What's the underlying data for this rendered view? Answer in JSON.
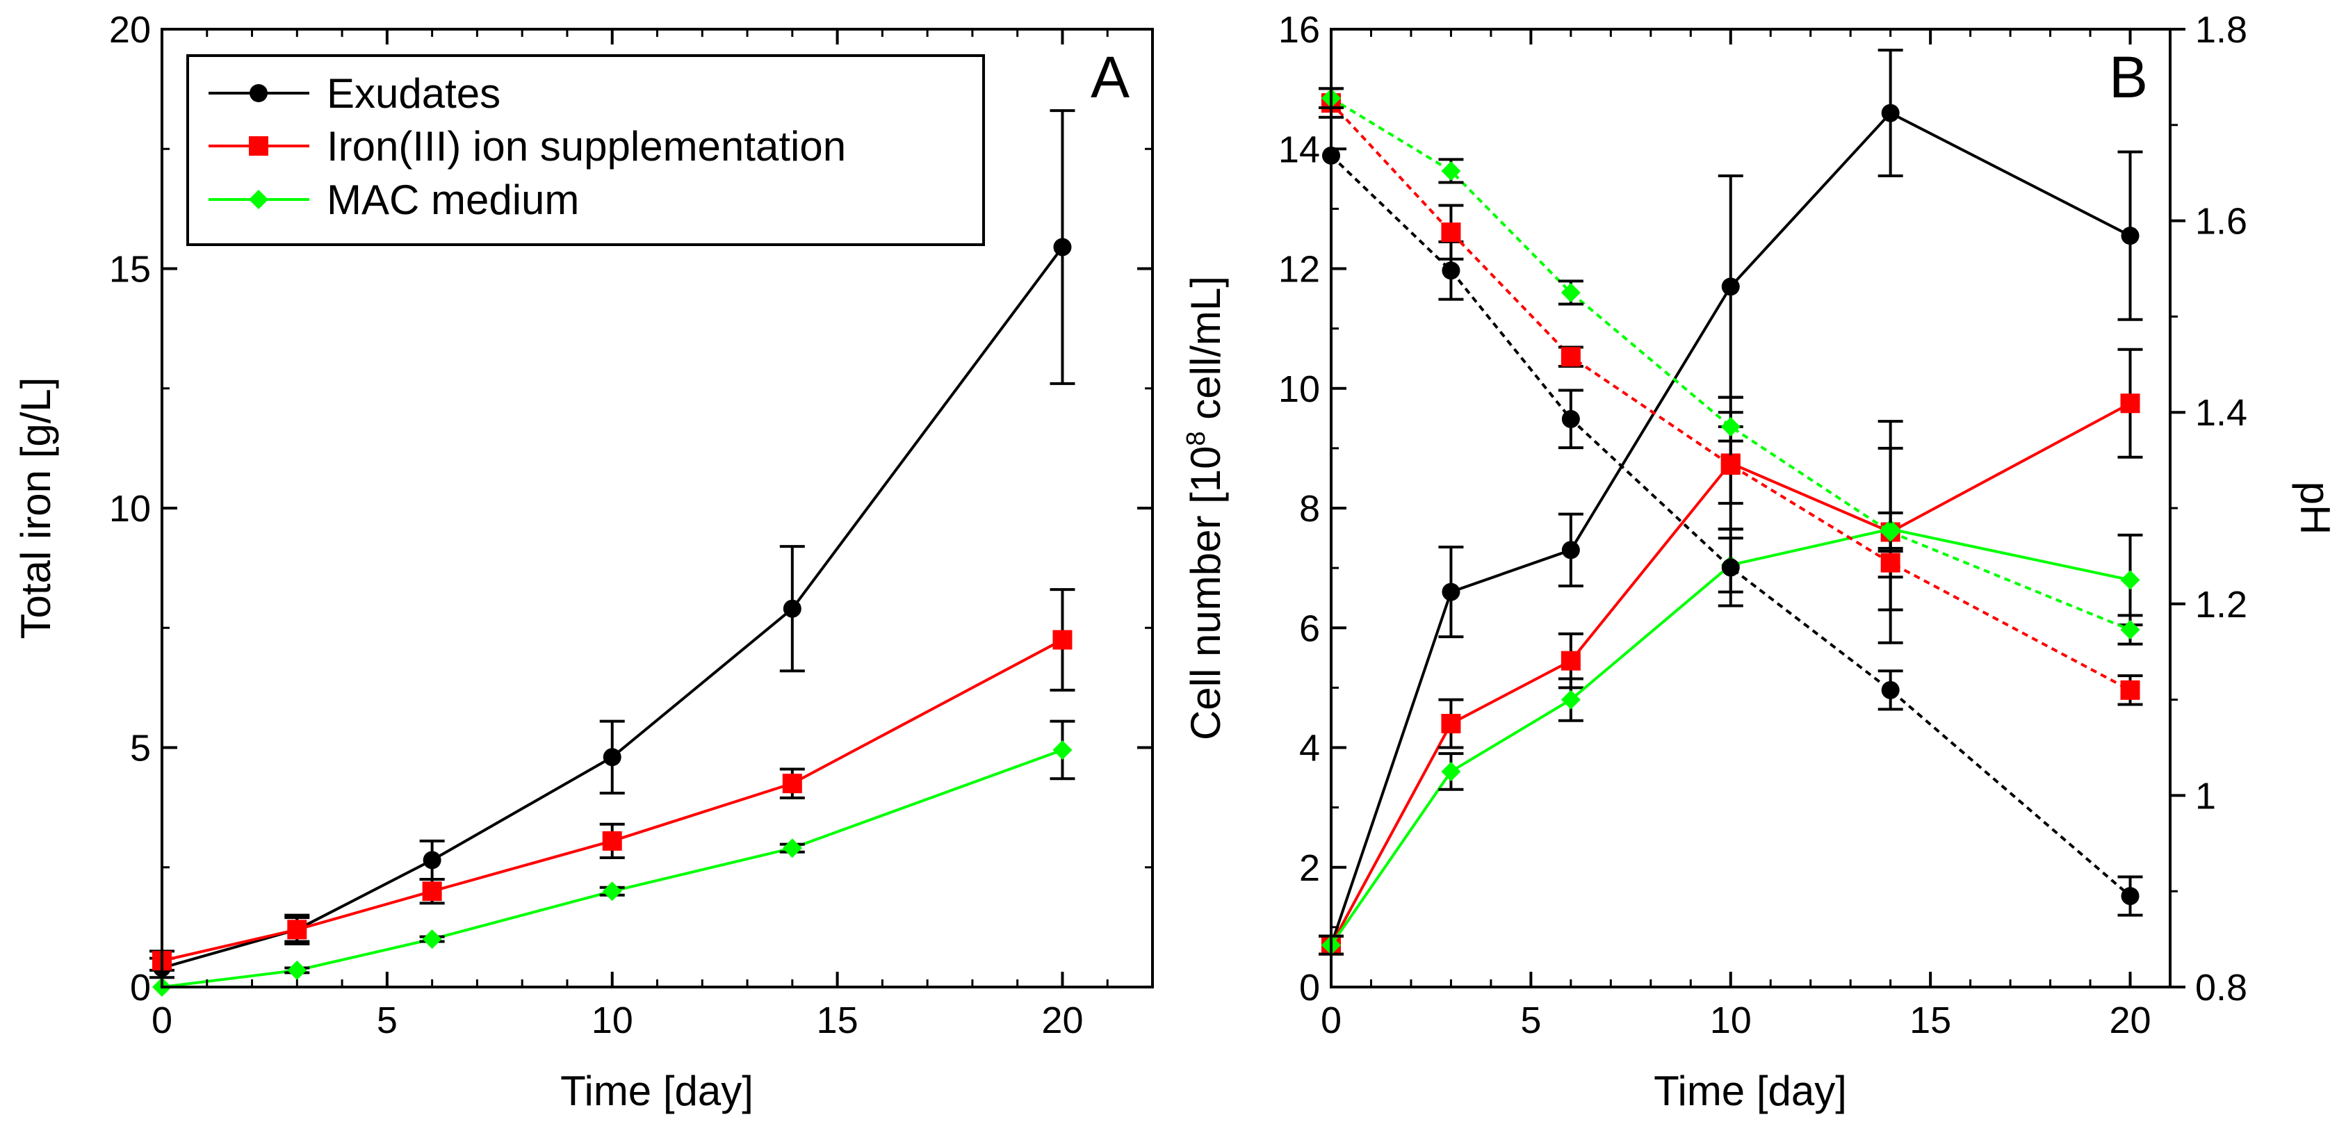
{
  "chart_data": [
    {
      "type": "line",
      "panel_label": "A",
      "xlabel": "Time [day]",
      "ylabel": "Total iron [g/L]",
      "xlim": [
        0,
        22
      ],
      "ylim": [
        0,
        20
      ],
      "x_ticks": [
        0,
        5,
        10,
        15,
        20
      ],
      "y_ticks": [
        0,
        5,
        10,
        15,
        20
      ],
      "grid": false,
      "legend_position": "top-left",
      "series": [
        {
          "name": "Exudates",
          "color": "#000000",
          "marker": "circle",
          "x": [
            0,
            3,
            6,
            10,
            14,
            20
          ],
          "values": [
            0.4,
            1.2,
            2.65,
            4.8,
            7.9,
            15.45
          ],
          "errors": [
            0.2,
            0.3,
            0.4,
            0.75,
            1.3,
            2.85
          ]
        },
        {
          "name": "Iron(III) ion supplementation",
          "color": "#ff0000",
          "marker": "square",
          "x": [
            0,
            3,
            6,
            10,
            14,
            20
          ],
          "values": [
            0.55,
            1.2,
            2.0,
            3.05,
            4.25,
            7.25
          ],
          "errors": [
            0.2,
            0.25,
            0.25,
            0.35,
            0.3,
            1.05
          ]
        },
        {
          "name": "MAC medium",
          "color": "#00ff00",
          "marker": "diamond",
          "x": [
            0,
            3,
            6,
            10,
            14,
            20
          ],
          "values": [
            0.0,
            0.35,
            1.0,
            2.0,
            2.9,
            4.95
          ],
          "errors": [
            0,
            0.05,
            0.05,
            0.08,
            0.08,
            0.6
          ]
        }
      ]
    },
    {
      "type": "line",
      "panel_label": "B",
      "xlabel": "Time [day]",
      "ylabel_prefix": "Cell number [10",
      "ylabel_sup": "8",
      "ylabel_suffix": " cell/mL]",
      "y2label": "pH",
      "xlim": [
        0,
        21
      ],
      "ylim": [
        0,
        16
      ],
      "y2lim": [
        0.8,
        1.8
      ],
      "x_ticks": [
        0,
        5,
        10,
        15,
        20
      ],
      "y_ticks": [
        0,
        2,
        4,
        6,
        8,
        10,
        12,
        14,
        16
      ],
      "y2_ticks": [
        0.8,
        1,
        1.2,
        1.4,
        1.6,
        1.8
      ],
      "y2_tick_labels": [
        "0.8",
        "1",
        "1.2",
        "1.4",
        "1.6",
        "1.8"
      ],
      "grid": false,
      "series": [
        {
          "name": "Exudates cell number",
          "axis": "left",
          "style": "solid",
          "color": "#000000",
          "marker": "circle",
          "x": [
            0,
            3,
            6,
            10,
            14,
            20
          ],
          "values": [
            0.7,
            6.6,
            7.3,
            11.7,
            14.6,
            12.55
          ],
          "errors": [
            0.15,
            0.75,
            0.6,
            1.85,
            1.05,
            1.4
          ]
        },
        {
          "name": "Iron(III) ion supplementation cell number",
          "axis": "left",
          "style": "solid",
          "color": "#ff0000",
          "marker": "square",
          "x": [
            0,
            3,
            6,
            10,
            14,
            20
          ],
          "values": [
            0.7,
            4.4,
            5.45,
            8.75,
            7.6,
            9.75
          ],
          "errors": [
            0.15,
            0.4,
            0.45,
            1.1,
            1.85,
            0.9
          ]
        },
        {
          "name": "MAC medium cell number",
          "axis": "left",
          "style": "solid",
          "color": "#00ff00",
          "marker": "diamond",
          "x": [
            0,
            3,
            6,
            10,
            14,
            20
          ],
          "values": [
            0.7,
            3.6,
            4.8,
            7.05,
            7.65,
            6.8
          ],
          "errors": [
            0.15,
            0.3,
            0.35,
            0.45,
            1.35,
            0.75
          ]
        },
        {
          "name": "Exudates pH",
          "axis": "right",
          "style": "dashed",
          "color": "#000000",
          "marker": "circle",
          "x": [
            0,
            3,
            6,
            10,
            14,
            20
          ],
          "values": [
            1.668,
            1.548,
            1.393,
            1.238,
            1.11,
            0.895
          ],
          "errors": [
            0.0,
            0.03,
            0.03,
            0.04,
            0.02,
            0.02
          ]
        },
        {
          "name": "Iron(III) ion supplementation pH",
          "axis": "right",
          "style": "dashed",
          "color": "#ff0000",
          "marker": "square",
          "x": [
            0,
            3,
            6,
            10,
            14,
            20
          ],
          "values": [
            1.723,
            1.588,
            1.458,
            1.345,
            1.243,
            1.11
          ],
          "errors": [
            0.015,
            0.028,
            0.01,
            0.04,
            0.015,
            0.015
          ]
        },
        {
          "name": "MAC medium pH",
          "axis": "right",
          "style": "dashed",
          "color": "#00ff00",
          "marker": "diamond",
          "x": [
            0,
            3,
            6,
            10,
            14,
            20
          ],
          "values": [
            1.728,
            1.652,
            1.525,
            1.385,
            1.275,
            1.173
          ],
          "errors": [
            0.01,
            0.012,
            0.012,
            0.015,
            0.02,
            0.015
          ]
        }
      ]
    }
  ]
}
